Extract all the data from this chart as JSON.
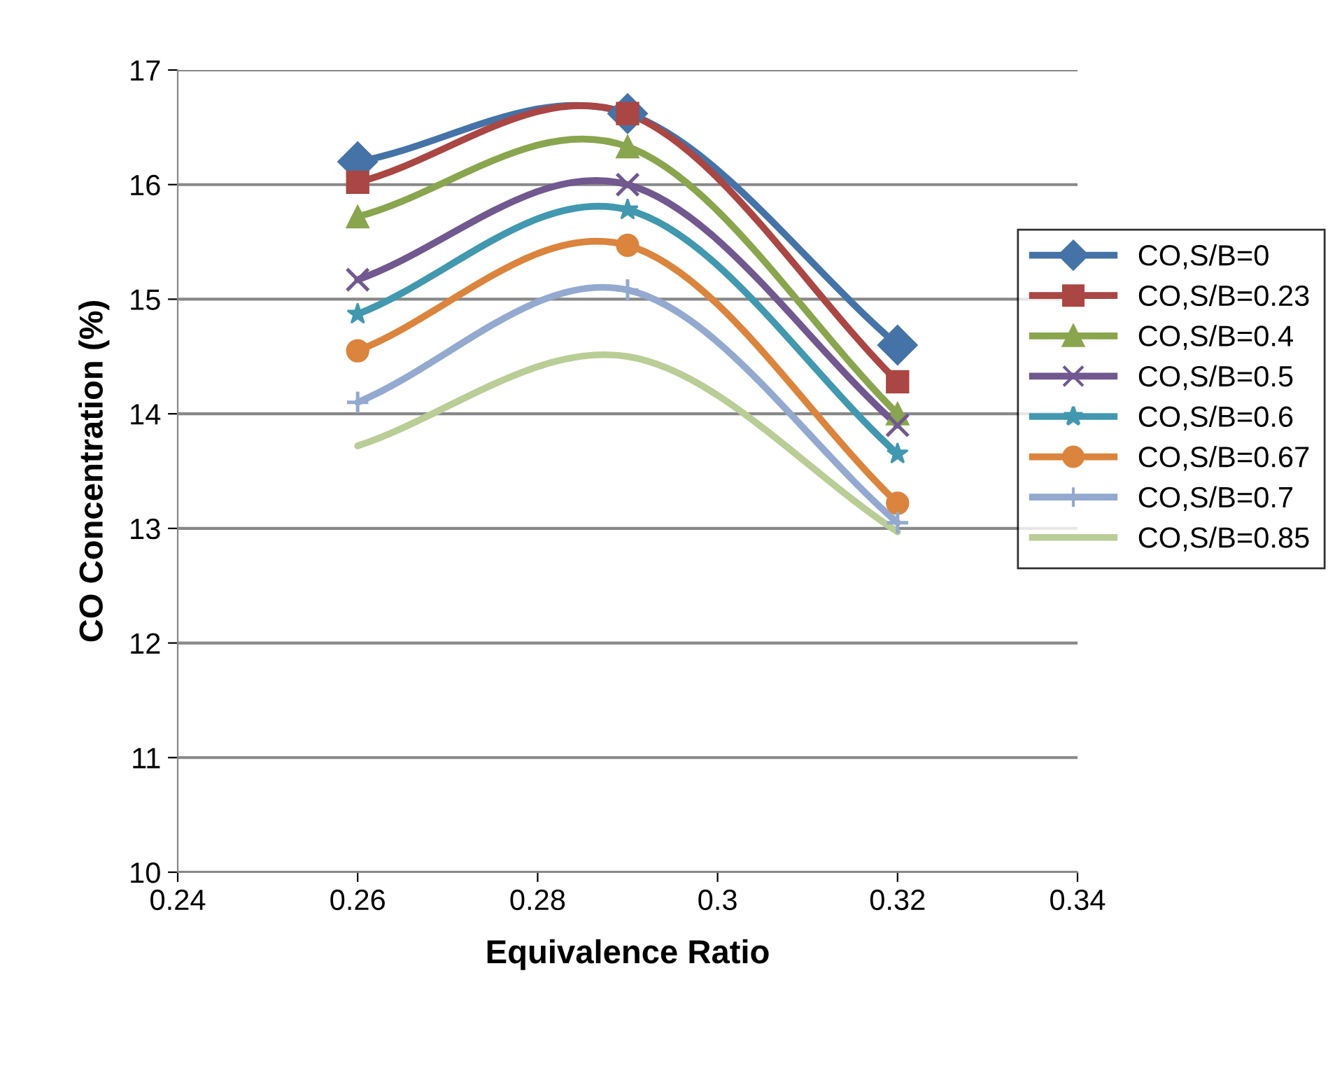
{
  "chart_data": {
    "type": "line",
    "xlabel": "Equivalence Ratio",
    "ylabel": "CO Concentration (%)",
    "x": [
      0.26,
      0.29,
      0.32
    ],
    "series": [
      {
        "name": "CO,S/B=0",
        "color": "#4573a7",
        "marker": "diamond",
        "values": [
          16.2,
          16.62,
          14.6
        ]
      },
      {
        "name": "CO,S/B=0.23",
        "color": "#aa4643",
        "marker": "square",
        "values": [
          16.02,
          16.62,
          14.28
        ]
      },
      {
        "name": "CO,S/B=0.4",
        "color": "#89a54e",
        "marker": "triangle",
        "values": [
          15.72,
          16.33,
          14.0
        ]
      },
      {
        "name": "CO,S/B=0.5",
        "color": "#71588f",
        "marker": "cross",
        "values": [
          15.17,
          16.0,
          13.9
        ]
      },
      {
        "name": "CO,S/B=0.6",
        "color": "#4198af",
        "marker": "star",
        "values": [
          14.87,
          15.78,
          13.65
        ]
      },
      {
        "name": "CO,S/B=0.67",
        "color": "#db843d",
        "marker": "circle",
        "values": [
          14.55,
          15.47,
          13.22
        ]
      },
      {
        "name": "CO,S/B=0.7",
        "color": "#93a9cf",
        "marker": "plus",
        "values": [
          14.1,
          15.08,
          13.05
        ]
      },
      {
        "name": "CO,S/B=0.85",
        "color": "#b9cd96",
        "marker": "none",
        "values": [
          13.72,
          14.5,
          12.97
        ]
      }
    ],
    "xlim": [
      0.24,
      0.34
    ],
    "xticks": [
      0.24,
      0.26,
      0.28,
      {
        "value": 0.3,
        "label": "0.3"
      },
      0.32,
      0.34
    ],
    "ylim": [
      10,
      17
    ],
    "yticks": [
      10,
      11,
      12,
      13,
      14,
      15,
      16,
      17
    ],
    "grid": "y",
    "legend": "right"
  }
}
